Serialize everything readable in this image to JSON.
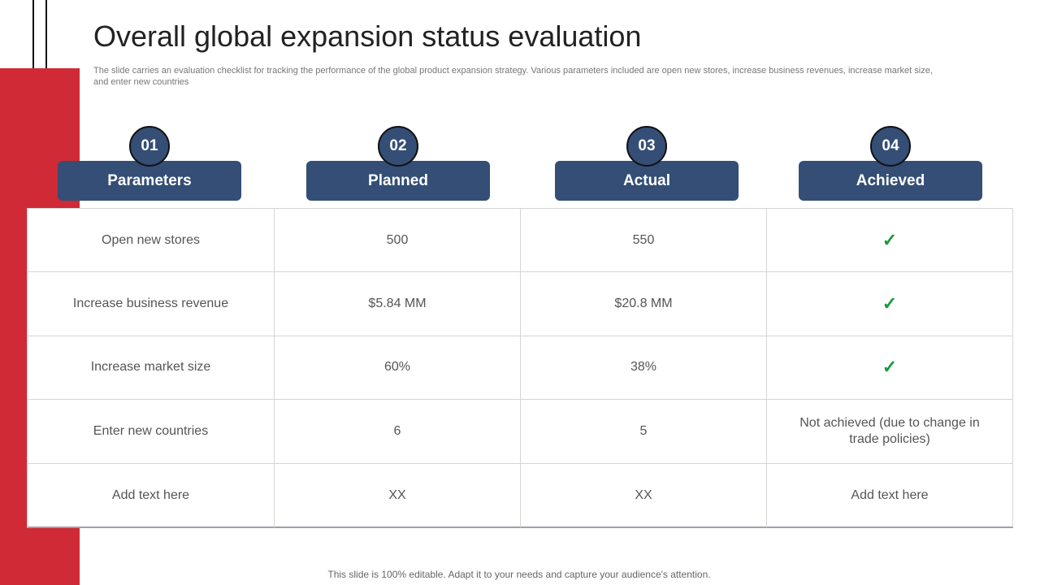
{
  "title": "Overall global expansion status evaluation",
  "subtitle": "The slide carries an evaluation checklist for tracking the performance of the global product expansion strategy. Various parameters included are open new stores, increase business revenues, increase market size, and enter new countries",
  "columns": [
    {
      "number": "01",
      "label": "Parameters"
    },
    {
      "number": "02",
      "label": "Planned"
    },
    {
      "number": "03",
      "label": "Actual"
    },
    {
      "number": "04",
      "label": "Achieved"
    }
  ],
  "rows": [
    [
      "Open new stores",
      "500",
      "550",
      "✓"
    ],
    [
      "Increase business revenue",
      "$5.84 MM",
      "$20.8 MM",
      "✓"
    ],
    [
      "Increase market size",
      "60%",
      "38%",
      "✓"
    ],
    [
      "Enter new countries",
      "6",
      "5",
      "Not achieved (due to change in trade policies)"
    ],
    [
      "Add text here",
      "XX",
      "XX",
      "Add text here"
    ]
  ],
  "footer": "This slide is 100% editable. Adapt it to your needs and capture your audience's attention."
}
